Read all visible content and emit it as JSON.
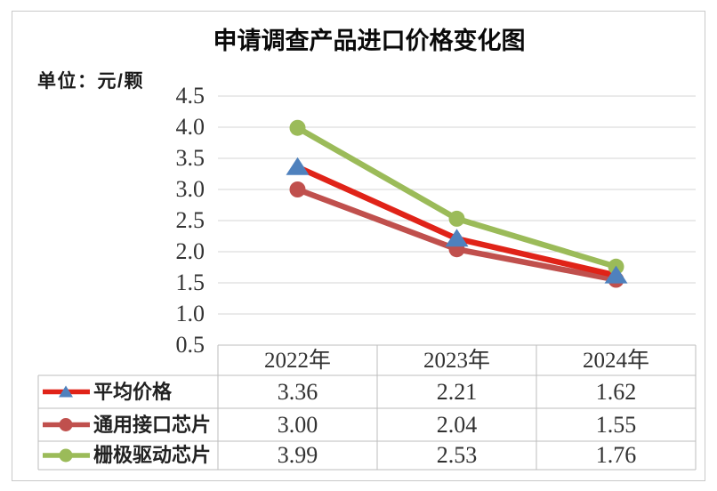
{
  "chart": {
    "title": "申请调查产品进口价格变化图",
    "unit_label": "单位：元/颗"
  },
  "chart_data": {
    "type": "line",
    "title": "申请调查产品进口价格变化图",
    "ylabel": "单位：元/颗",
    "categories": [
      "2022年",
      "2023年",
      "2024年"
    ],
    "series": [
      {
        "name": "平均价格",
        "values": [
          3.36,
          2.21,
          1.62
        ],
        "line_color": "#e02318",
        "marker": "triangle",
        "marker_color": "#4f81bd"
      },
      {
        "name": "通用接口芯片",
        "values": [
          3.0,
          2.04,
          1.55
        ],
        "line_color": "#c0504d",
        "marker": "circle",
        "marker_color": "#c0504d"
      },
      {
        "name": "栅极驱动芯片",
        "values": [
          3.99,
          2.53,
          1.76
        ],
        "line_color": "#9bbb59",
        "marker": "circle",
        "marker_color": "#9bbb59"
      }
    ],
    "ylim": [
      0.5,
      4.5
    ],
    "ytick_step": 0.5,
    "ytick_labels": [
      "4.5",
      "4.0",
      "3.5",
      "3.0",
      "2.5",
      "2.0",
      "1.5",
      "1.0",
      "0.5"
    ],
    "grid": true,
    "legend_position": "table-left",
    "colors": {
      "gridline": "#d6d6d6",
      "table_border": "#bdbdbd",
      "text": "#313131"
    }
  }
}
